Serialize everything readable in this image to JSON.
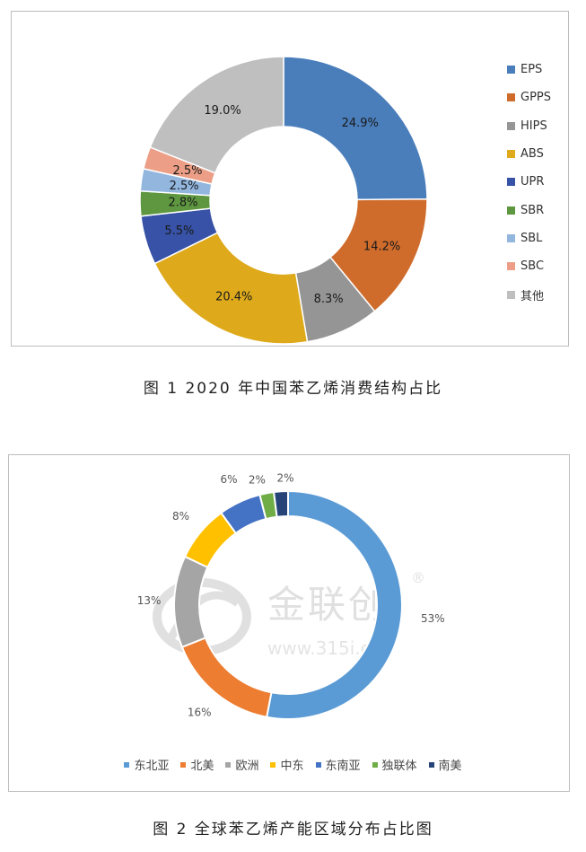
{
  "figure1": {
    "caption": "图 1  2020 年中国苯乙烯消费结构占比",
    "chart_data": {
      "type": "donut",
      "title": "",
      "legend_position": "right",
      "categories": [
        "EPS",
        "GPPS",
        "HIPS",
        "ABS",
        "UPR",
        "SBR",
        "SBL",
        "SBC",
        "其他"
      ],
      "values": [
        24.9,
        14.2,
        8.3,
        20.4,
        5.5,
        2.8,
        2.5,
        2.5,
        19.0
      ],
      "labels": [
        "24.9%",
        "14.2%",
        "8.3%",
        "20.4%",
        "5.5%",
        "2.8%",
        "2.5%",
        "2.5%",
        "19.0%"
      ],
      "colors": [
        "#4a7ebb",
        "#cf6c2c",
        "#959595",
        "#deaa1c",
        "#3752a6",
        "#5e9740",
        "#92b6de",
        "#ec9f86",
        "#bfbfbf"
      ]
    }
  },
  "figure2": {
    "caption": "图 2  全球苯乙烯产能区域分布占比图",
    "watermark": {
      "brand": "金联创",
      "url": "www.315i.cn",
      "mark": "®"
    },
    "chart_data": {
      "type": "donut",
      "title": "",
      "legend_position": "bottom",
      "categories": [
        "东北亚",
        "北美",
        "欧洲",
        "中东",
        "东南亚",
        "独联体",
        "南美"
      ],
      "values": [
        53,
        16,
        13,
        8,
        6,
        2,
        2
      ],
      "labels": [
        "53%",
        "16%",
        "13%",
        "8%",
        "6%",
        "2%",
        "2%"
      ],
      "colors": [
        "#5b9bd5",
        "#ed7d31",
        "#a5a5a5",
        "#ffc000",
        "#4472c4",
        "#70ad47",
        "#264478"
      ]
    }
  }
}
